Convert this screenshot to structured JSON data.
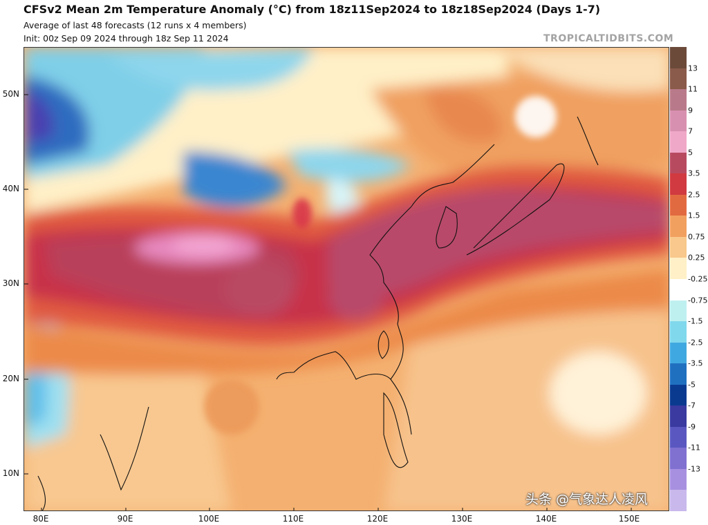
{
  "header": {
    "title": "CFSv2 Mean 2m Temperature Anomaly (°C) from 18z11Sep2024 to 18z18Sep2024 (Days 1-7)",
    "subtitle": "Average of last 48 forecasts (12 runs x 4 members)",
    "init": "Init: 00z Sep 09 2024 through 18z Sep 11 2024",
    "brand": "TROPICALTIDBITS.COM"
  },
  "map": {
    "lat_labels": [
      "50N",
      "40N",
      "30N",
      "20N",
      "10N"
    ],
    "lon_labels": [
      "80E",
      "90E",
      "100E",
      "110E",
      "120E",
      "130E",
      "140E",
      "150E"
    ]
  },
  "colorbar": {
    "labels": [
      "13",
      "11",
      "9",
      "7",
      "5",
      "3.5",
      "2.5",
      "1.5",
      "0.75",
      "0.25",
      "-0.25",
      "-0.75",
      "-1.5",
      "-2.5",
      "-3.5",
      "-5",
      "-7",
      "-9",
      "-11",
      "-13"
    ],
    "colors": [
      "#6b4a3a",
      "#8a5a4a",
      "#b87a8a",
      "#d890b0",
      "#f0a8c8",
      "#b84a60",
      "#d03a40",
      "#e26a40",
      "#f2a060",
      "#f8c88c",
      "#fff0c8",
      "#ffffff",
      "#bff0f0",
      "#80d8ec",
      "#40a8e0",
      "#2070c0",
      "#0a3a90",
      "#3a3aa0",
      "#5a58c0",
      "#8070d0",
      "#a890e0",
      "#c8b8ec"
    ]
  },
  "watermark": "头条 @气象达人凌风"
}
